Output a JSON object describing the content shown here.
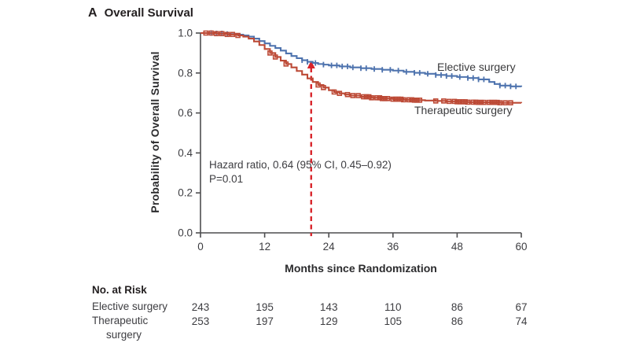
{
  "title": {
    "panel_letter": "A",
    "text": "Overall Survival"
  },
  "chart_data": {
    "type": "line",
    "subtype": "kaplan-meier-step",
    "title": "Overall Survival",
    "xlabel": "Months since Randomization",
    "ylabel": "Probability of Overall  Survival",
    "xlim": [
      0,
      60
    ],
    "ylim": [
      0.0,
      1.0
    ],
    "xticks": [
      0,
      12,
      24,
      36,
      48,
      60
    ],
    "yticks": [
      "0.0",
      "0.2",
      "0.4",
      "0.6",
      "0.8",
      "1.0"
    ],
    "grid": false,
    "legend_position": "inline-right",
    "annotation": {
      "line1": "Hazard ratio, 0.64 (95% CI, 0.45–0.92)",
      "line2": "P=0.01"
    },
    "reference_line": {
      "x_month": 20.7,
      "top_value": 0.862,
      "bottom_value": -0.016,
      "style": "dashed",
      "arrow": "up",
      "color": "#d8232a"
    },
    "series": [
      {
        "name": "Elective surgery",
        "color": "#4e73ae",
        "marker": "tick",
        "points": [
          [
            0,
            1.0
          ],
          [
            3,
            0.998
          ],
          [
            5,
            0.995
          ],
          [
            7,
            0.992
          ],
          [
            8,
            0.988
          ],
          [
            9,
            0.982
          ],
          [
            10,
            0.972
          ],
          [
            11,
            0.96
          ],
          [
            12,
            0.948
          ],
          [
            13,
            0.936
          ],
          [
            14,
            0.925
          ],
          [
            15,
            0.912
          ],
          [
            16,
            0.898
          ],
          [
            17,
            0.885
          ],
          [
            18,
            0.874
          ],
          [
            19,
            0.864
          ],
          [
            20,
            0.856
          ],
          [
            21,
            0.85
          ],
          [
            22,
            0.845
          ],
          [
            23,
            0.842
          ],
          [
            24,
            0.838
          ],
          [
            26,
            0.833
          ],
          [
            28,
            0.828
          ],
          [
            30,
            0.824
          ],
          [
            32,
            0.82
          ],
          [
            34,
            0.816
          ],
          [
            36,
            0.812
          ],
          [
            38,
            0.806
          ],
          [
            40,
            0.801
          ],
          [
            42,
            0.796
          ],
          [
            44,
            0.79
          ],
          [
            46,
            0.785
          ],
          [
            48,
            0.78
          ],
          [
            50,
            0.775
          ],
          [
            52,
            0.768
          ],
          [
            54,
            0.755
          ],
          [
            55,
            0.745
          ],
          [
            56,
            0.737
          ],
          [
            58,
            0.733
          ],
          [
            60,
            0.731
          ]
        ],
        "censor_months": [
          2,
          3,
          4,
          5,
          19,
          20,
          21.5,
          23,
          24.5,
          25.5,
          26.5,
          27.5,
          28.5,
          30,
          31,
          32.5,
          34,
          35.5,
          37,
          38.5,
          40,
          41,
          42.5,
          44,
          45,
          46,
          47,
          48.5,
          50,
          51,
          52,
          53,
          56,
          57,
          58,
          59
        ]
      },
      {
        "name": "Therapeutic surgery",
        "color": "#bc4935",
        "marker": "square",
        "points": [
          [
            0,
            1.0
          ],
          [
            3,
            0.997
          ],
          [
            5,
            0.993
          ],
          [
            7,
            0.988
          ],
          [
            8,
            0.982
          ],
          [
            9,
            0.972
          ],
          [
            10,
            0.958
          ],
          [
            11,
            0.94
          ],
          [
            12,
            0.92
          ],
          [
            13,
            0.9
          ],
          [
            14,
            0.88
          ],
          [
            15,
            0.862
          ],
          [
            16,
            0.845
          ],
          [
            17,
            0.828
          ],
          [
            18,
            0.81
          ],
          [
            19,
            0.792
          ],
          [
            20,
            0.773
          ],
          [
            21,
            0.755
          ],
          [
            22,
            0.74
          ],
          [
            23,
            0.727
          ],
          [
            24,
            0.714
          ],
          [
            25,
            0.705
          ],
          [
            26,
            0.698
          ],
          [
            27,
            0.692
          ],
          [
            28,
            0.687
          ],
          [
            30,
            0.681
          ],
          [
            32,
            0.676
          ],
          [
            34,
            0.672
          ],
          [
            36,
            0.669
          ],
          [
            38,
            0.666
          ],
          [
            40,
            0.664
          ],
          [
            42,
            0.662
          ],
          [
            44,
            0.66
          ],
          [
            46,
            0.658
          ],
          [
            48,
            0.656
          ],
          [
            50,
            0.654
          ],
          [
            52,
            0.653
          ],
          [
            56,
            0.651
          ],
          [
            60,
            0.65
          ]
        ],
        "censor_months": [
          1,
          2,
          3,
          4,
          5,
          6,
          7,
          13,
          14,
          16,
          22,
          23,
          25,
          26,
          27.5,
          28.5,
          29.5,
          30.5,
          31,
          31.5,
          32,
          33,
          33.5,
          34,
          34.5,
          35,
          36,
          36.5,
          37,
          37.5,
          38,
          39,
          39.5,
          40,
          40.5,
          41,
          44,
          45.5,
          46.5,
          47.5,
          48,
          48.5,
          49,
          49.5,
          50,
          51,
          51.5,
          52,
          52.5,
          53,
          54,
          54.5,
          55,
          55.5,
          56,
          57,
          58
        ]
      }
    ]
  },
  "risk_table": {
    "header": "No. at Risk",
    "months": [
      0,
      12,
      24,
      36,
      48,
      60
    ],
    "rows": [
      {
        "label": "Elective surgery",
        "label_lines": [
          "Elective surgery"
        ],
        "values": [
          243,
          195,
          143,
          110,
          86,
          67
        ]
      },
      {
        "label": "Therapeutic surgery",
        "label_lines": [
          "Therapeutic",
          "surgery"
        ],
        "values": [
          253,
          197,
          129,
          105,
          86,
          74
        ]
      }
    ]
  },
  "colors": {
    "elective": "#4e73ae",
    "therapeutic": "#bc4935",
    "dashed_reference": "#d8232a",
    "axis": "#4d4d4f",
    "text": "#3d3d41"
  }
}
